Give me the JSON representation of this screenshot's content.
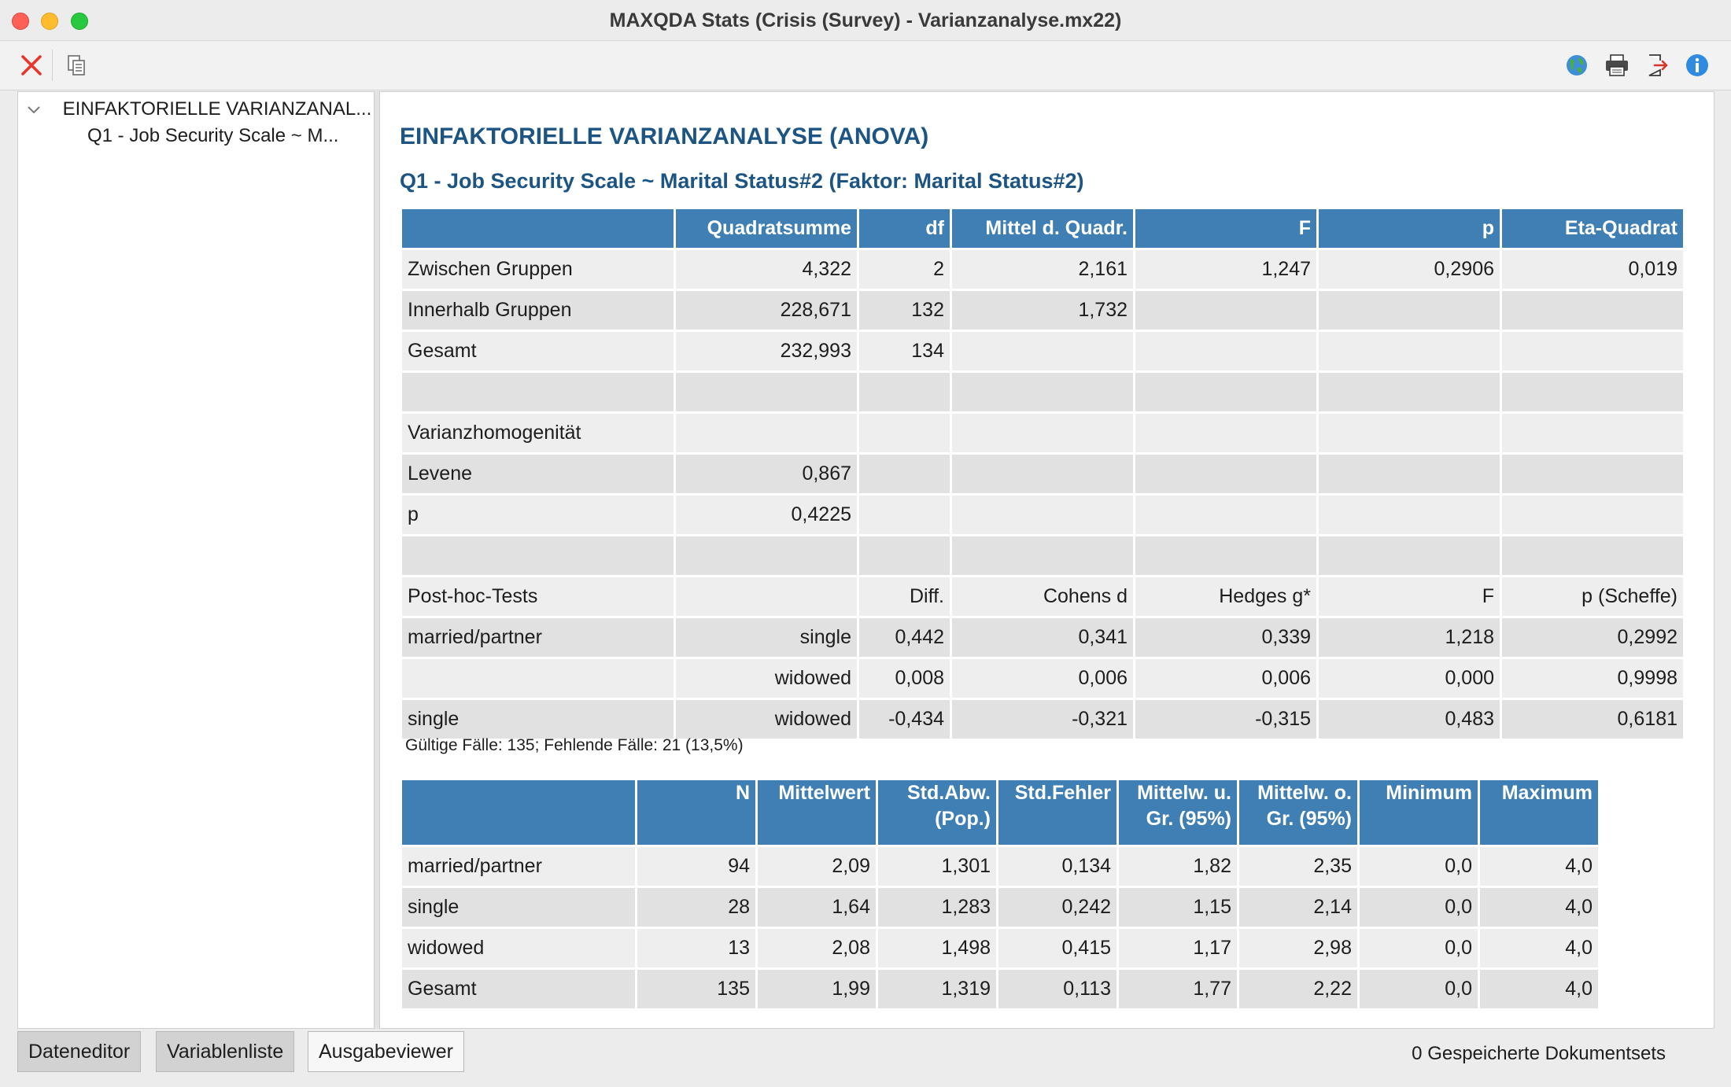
{
  "window": {
    "title": "MAXQDA Stats (Crisis (Survey) - Varianzanalyse.mx22)"
  },
  "tree": {
    "root_label": "EINFAKTORIELLE VARIANZANAL...",
    "child_label": "Q1 - Job Security Scale ~ M..."
  },
  "output": {
    "title": "EINFAKTORIELLE VARIANZANALYSE (ANOVA)",
    "subtitle": "Q1 - Job Security Scale ~ Marital Status#2 (Faktor: Marital Status#2)",
    "anova_table": {
      "headers": [
        "",
        "Quadratsumme",
        "df",
        "Mittel d. Quadr.",
        "F",
        "p",
        "Eta-Quadrat"
      ],
      "rows": [
        [
          "Zwischen Gruppen",
          "4,322",
          "2",
          "2,161",
          "1,247",
          "0,2906",
          "0,019"
        ],
        [
          "Innerhalb Gruppen",
          "228,671",
          "132",
          "1,732",
          "",
          "",
          ""
        ],
        [
          "Gesamt",
          "232,993",
          "134",
          "",
          "",
          "",
          ""
        ],
        [
          "",
          "",
          "",
          "",
          "",
          "",
          ""
        ],
        [
          "Varianzhomogenität",
          "",
          "",
          "",
          "",
          "",
          ""
        ],
        [
          "Levene",
          "0,867",
          "",
          "",
          "",
          "",
          ""
        ],
        [
          "p",
          "0,4225",
          "",
          "",
          "",
          "",
          ""
        ],
        [
          "",
          "",
          "",
          "",
          "",
          "",
          ""
        ],
        [
          "Post-hoc-Tests",
          "",
          "Diff.",
          "Cohens d",
          "Hedges g*",
          "F",
          "p (Scheffe)"
        ],
        [
          "married/partner",
          "single",
          "0,442",
          "0,341",
          "0,339",
          "1,218",
          "0,2992"
        ],
        [
          "",
          "widowed",
          "0,008",
          "0,006",
          "0,006",
          "0,000",
          "0,9998"
        ],
        [
          "single",
          "widowed",
          "-0,434",
          "-0,321",
          "-0,315",
          "0,483",
          "0,6181"
        ]
      ]
    },
    "note": "Gültige Fälle: 135; Fehlende Fälle: 21 (13,5%)",
    "desc_table": {
      "headers": [
        "",
        "N",
        "Mittelwert",
        "Std.Abw. (Pop.)",
        "Std.Fehler",
        "Mittelw. u. Gr. (95%)",
        "Mittelw. o. Gr. (95%)",
        "Minimum",
        "Maximum"
      ],
      "rows": [
        [
          "married/partner",
          "94",
          "2,09",
          "1,301",
          "0,134",
          "1,82",
          "2,35",
          "0,0",
          "4,0"
        ],
        [
          "single",
          "28",
          "1,64",
          "1,283",
          "0,242",
          "1,15",
          "2,14",
          "0,0",
          "4,0"
        ],
        [
          "widowed",
          "13",
          "2,08",
          "1,498",
          "0,415",
          "1,17",
          "2,98",
          "0,0",
          "4,0"
        ],
        [
          "Gesamt",
          "135",
          "1,99",
          "1,319",
          "0,113",
          "1,77",
          "2,22",
          "0,0",
          "4,0"
        ]
      ]
    }
  },
  "tabs": [
    {
      "label": "Dateneditor",
      "active": false
    },
    {
      "label": "Variablenliste",
      "active": false
    },
    {
      "label": "Ausgabeviewer",
      "active": true
    }
  ],
  "status": "0 Gespeicherte Dokumentsets",
  "toolbar_icons": [
    "close-icon",
    "copy-icon",
    "globe-icon",
    "print-icon",
    "export-icon",
    "info-icon"
  ],
  "colors": {
    "header_blue": "#3f7fb3",
    "title_blue": "#1c5584",
    "close_red": "#e8352b"
  }
}
